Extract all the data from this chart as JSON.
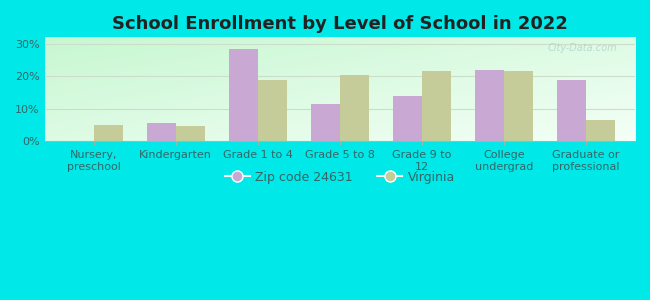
{
  "title": "School Enrollment by Level of School in 2022",
  "categories": [
    "Nursery,\npreschool",
    "Kindergarten",
    "Grade 1 to 4",
    "Grade 5 to 8",
    "Grade 9 to\n12",
    "College\nundergrad",
    "Graduate or\nprofessional"
  ],
  "zip_values": [
    0,
    5.5,
    28.5,
    11.5,
    14.0,
    22.0,
    19.0
  ],
  "va_values": [
    5.0,
    4.8,
    19.0,
    20.5,
    21.5,
    21.7,
    6.5
  ],
  "zip_color": "#c9a8d4",
  "va_color": "#c5cc9a",
  "background_outer": "#00e8e8",
  "background_inner_tl": "#b8e8c8",
  "background_inner_br": "#e8f8e8",
  "yticks": [
    0,
    10,
    20,
    30
  ],
  "ylim": [
    0,
    32
  ],
  "legend_zip": "Zip code 24631",
  "legend_va": "Virginia",
  "bar_width": 0.35,
  "title_fontsize": 13,
  "tick_fontsize": 8,
  "legend_fontsize": 9
}
